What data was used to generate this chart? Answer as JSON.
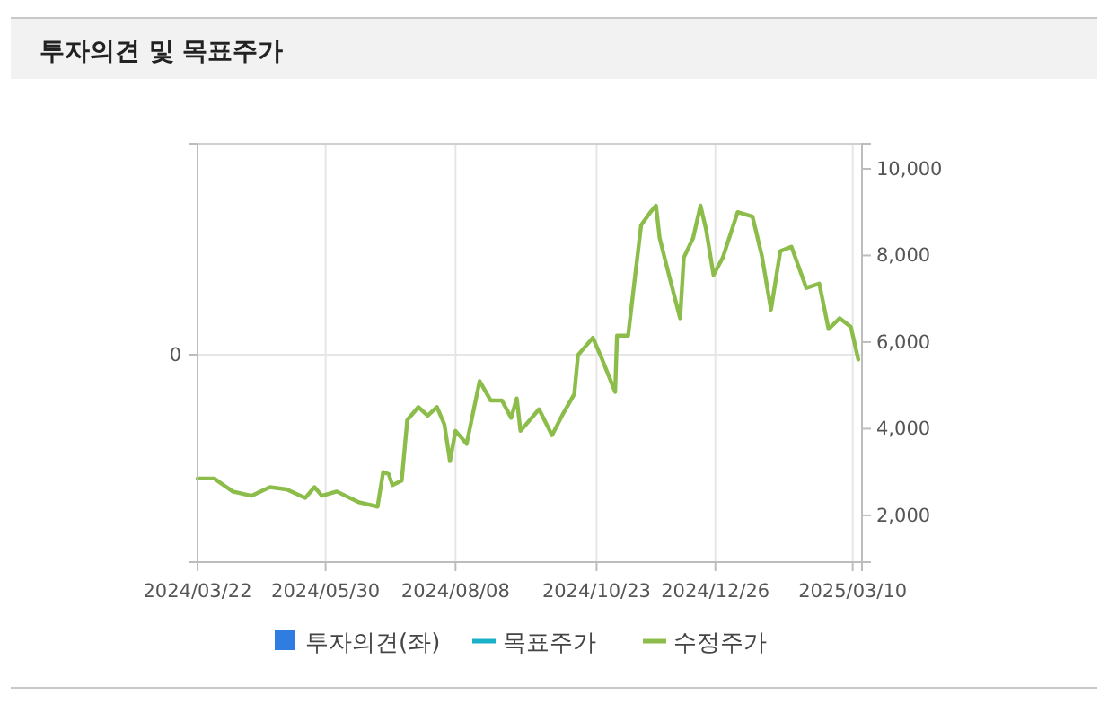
{
  "chart_data": {
    "type": "line",
    "title": "투자의견 및 목표주가",
    "xlim": [
      "2024-03-22",
      "2025-03-15"
    ],
    "xticks": [
      {
        "value": "2024-03-22",
        "label": "2024/03/22"
      },
      {
        "value": "2024-05-30",
        "label": "2024/05/30"
      },
      {
        "value": "2024-08-08",
        "label": "2024/08/08"
      },
      {
        "value": "2024-10-23",
        "label": "2024/10/23"
      },
      {
        "value": "2024-12-26",
        "label": "2024/12/26"
      },
      {
        "value": "2025-03-10",
        "label": "2025/03/10"
      }
    ],
    "annotations": [
      "0"
    ],
    "y2lim": [
      920,
      10580
    ],
    "y2ticks": [
      {
        "value": 2000,
        "label": "2,000"
      },
      {
        "value": 4000,
        "label": "4,000"
      },
      {
        "value": 6000,
        "label": "6,000"
      },
      {
        "value": 8000,
        "label": "8,000"
      },
      {
        "value": 10000,
        "label": "10,000"
      }
    ],
    "grid": true,
    "legend": "bottom",
    "series": [
      {
        "name": "투자의견(좌)",
        "type": "bar",
        "axis": "y",
        "color": "#2f7de1"
      },
      {
        "name": "목표주가",
        "type": "line",
        "axis": "y2",
        "color": "#1ab0c8"
      },
      {
        "name": "수정주가",
        "axis": "y2",
        "color": "#8cbd4a",
        "x": [
          "2024-03-22",
          "2024-03-31",
          "2024-04-10",
          "2024-04-20",
          "2024-04-30",
          "2024-05-09",
          "2024-05-19",
          "2024-05-24",
          "2024-05-28",
          "2024-06-05",
          "2024-06-17",
          "2024-06-27",
          "2024-06-30",
          "2024-07-03",
          "2024-07-05",
          "2024-07-10",
          "2024-07-13",
          "2024-07-19",
          "2024-07-24",
          "2024-07-29",
          "2024-08-02",
          "2024-08-05",
          "2024-08-08",
          "2024-08-14",
          "2024-08-21",
          "2024-08-27",
          "2024-09-02",
          "2024-09-07",
          "2024-09-10",
          "2024-09-12",
          "2024-09-22",
          "2024-09-29",
          "2024-10-05",
          "2024-10-11",
          "2024-10-13",
          "2024-10-21",
          "2024-10-26",
          "2024-11-02",
          "2024-11-03",
          "2024-11-09",
          "2024-11-12",
          "2024-11-16",
          "2024-11-21",
          "2024-11-24",
          "2024-11-26",
          "2024-12-01",
          "2024-12-07",
          "2024-12-09",
          "2024-12-14",
          "2024-12-18",
          "2024-12-21",
          "2024-12-25",
          "2024-12-30",
          "2025-01-07",
          "2025-01-15",
          "2025-01-20",
          "2025-01-25",
          "2025-01-30",
          "2025-02-05",
          "2025-02-13",
          "2025-02-20",
          "2025-02-25",
          "2025-03-03",
          "2025-03-09",
          "2025-03-13"
        ],
        "values": [
          2850,
          2850,
          2550,
          2450,
          2650,
          2600,
          2400,
          2650,
          2450,
          2550,
          2300,
          2200,
          3000,
          2950,
          2700,
          2800,
          4200,
          4500,
          4300,
          4500,
          4100,
          3250,
          3950,
          3650,
          5100,
          4650,
          4650,
          4250,
          4700,
          3950,
          4450,
          3850,
          4350,
          4800,
          5700,
          6100,
          5600,
          4850,
          6150,
          6150,
          7250,
          8700,
          9000,
          9150,
          8400,
          7550,
          6550,
          7950,
          8400,
          9150,
          8600,
          7550,
          7950,
          9000,
          8900,
          8000,
          6750,
          8100,
          8200,
          7250,
          7350,
          6300,
          6550,
          6350,
          5600
        ]
      }
    ]
  }
}
